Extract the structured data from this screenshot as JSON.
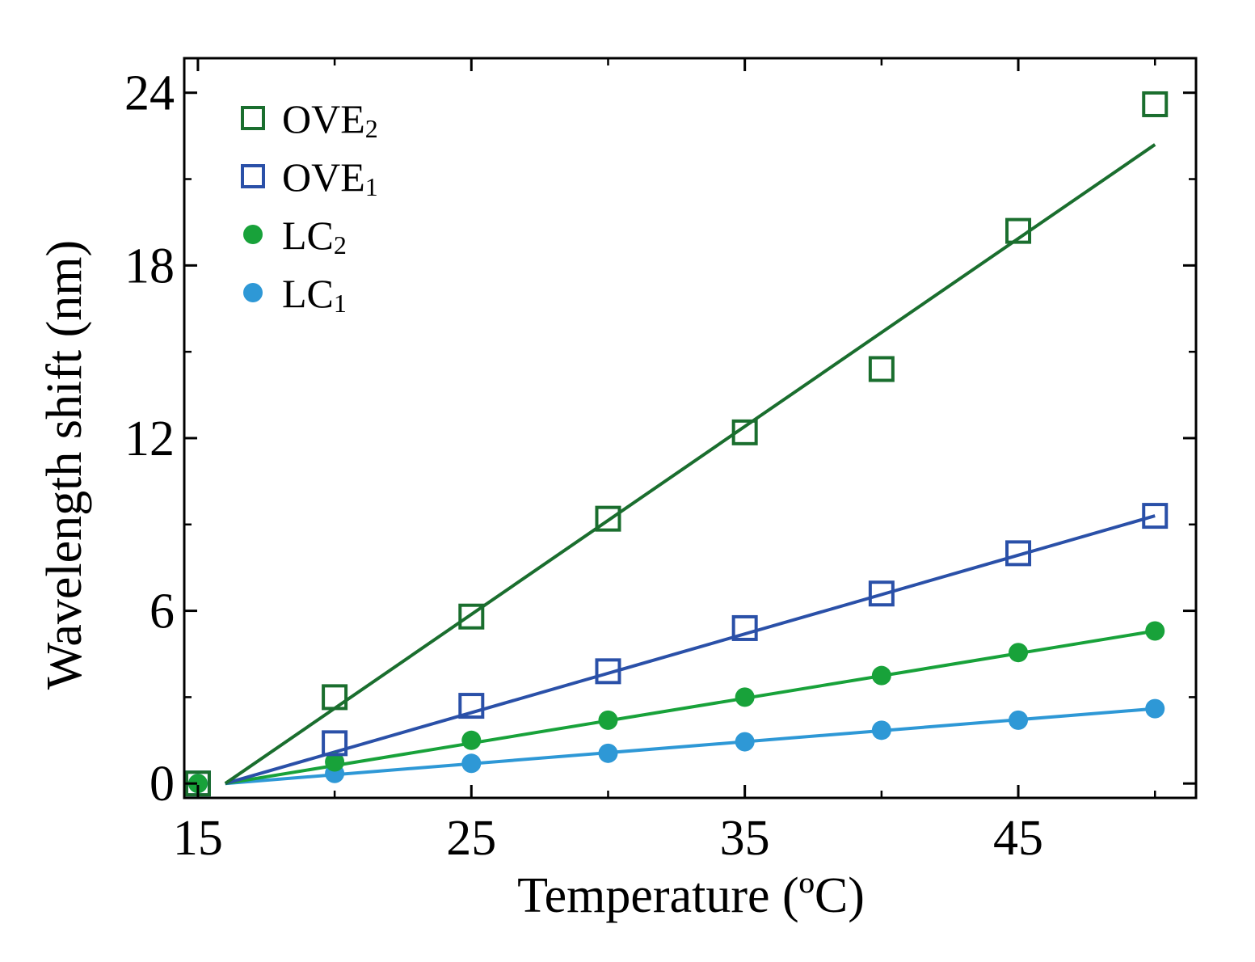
{
  "chart_data": {
    "type": "scatter",
    "title": "",
    "xlabel": "Temperature (ºC)",
    "ylabel": "Wavelength shift (nm)",
    "xlim": [
      14.5,
      51.5
    ],
    "ylim": [
      -0.5,
      25.2
    ],
    "xticks": [
      15,
      25,
      35,
      45
    ],
    "xtick_labels": [
      "15",
      "25",
      "35",
      "45"
    ],
    "yticks": [
      0,
      6,
      12,
      18,
      24
    ],
    "ytick_labels": [
      "0",
      "6",
      "12",
      "18",
      "24"
    ],
    "grid": false,
    "legend_position": "top-left",
    "series": [
      {
        "name": "OVE",
        "subscript": "2",
        "color": "#1a6e2e",
        "marker": "square-open",
        "x": [
          15,
          20,
          25,
          30,
          35,
          40,
          45,
          50
        ],
        "y": [
          0.0,
          3.0,
          5.8,
          9.2,
          12.2,
          14.4,
          19.2,
          23.6
        ],
        "fit": {
          "x": [
            16,
            50
          ],
          "y": [
            0.0,
            22.2
          ]
        }
      },
      {
        "name": "OVE",
        "subscript": "1",
        "color": "#2a50a8",
        "marker": "square-open",
        "x": [
          15,
          20,
          25,
          30,
          35,
          40,
          45,
          50
        ],
        "y": [
          0.0,
          1.4,
          2.7,
          3.9,
          5.4,
          6.6,
          8.0,
          9.3
        ],
        "fit": {
          "x": [
            16,
            50
          ],
          "y": [
            0.0,
            9.3
          ]
        }
      },
      {
        "name": "LC",
        "subscript": "2",
        "color": "#18a23a",
        "marker": "circle-filled",
        "x": [
          15,
          20,
          25,
          30,
          35,
          40,
          45,
          50
        ],
        "y": [
          0.0,
          0.75,
          1.5,
          2.2,
          3.0,
          3.75,
          4.55,
          5.3
        ],
        "fit": {
          "x": [
            16,
            50
          ],
          "y": [
            0.0,
            5.3
          ]
        }
      },
      {
        "name": "LC",
        "subscript": "1",
        "color": "#2e98d6",
        "marker": "circle-filled",
        "x": [
          15,
          20,
          25,
          30,
          35,
          40,
          45,
          50
        ],
        "y": [
          0.0,
          0.35,
          0.7,
          1.05,
          1.45,
          1.85,
          2.2,
          2.6
        ],
        "fit": {
          "x": [
            16,
            50
          ],
          "y": [
            0.0,
            2.6
          ]
        }
      }
    ]
  }
}
